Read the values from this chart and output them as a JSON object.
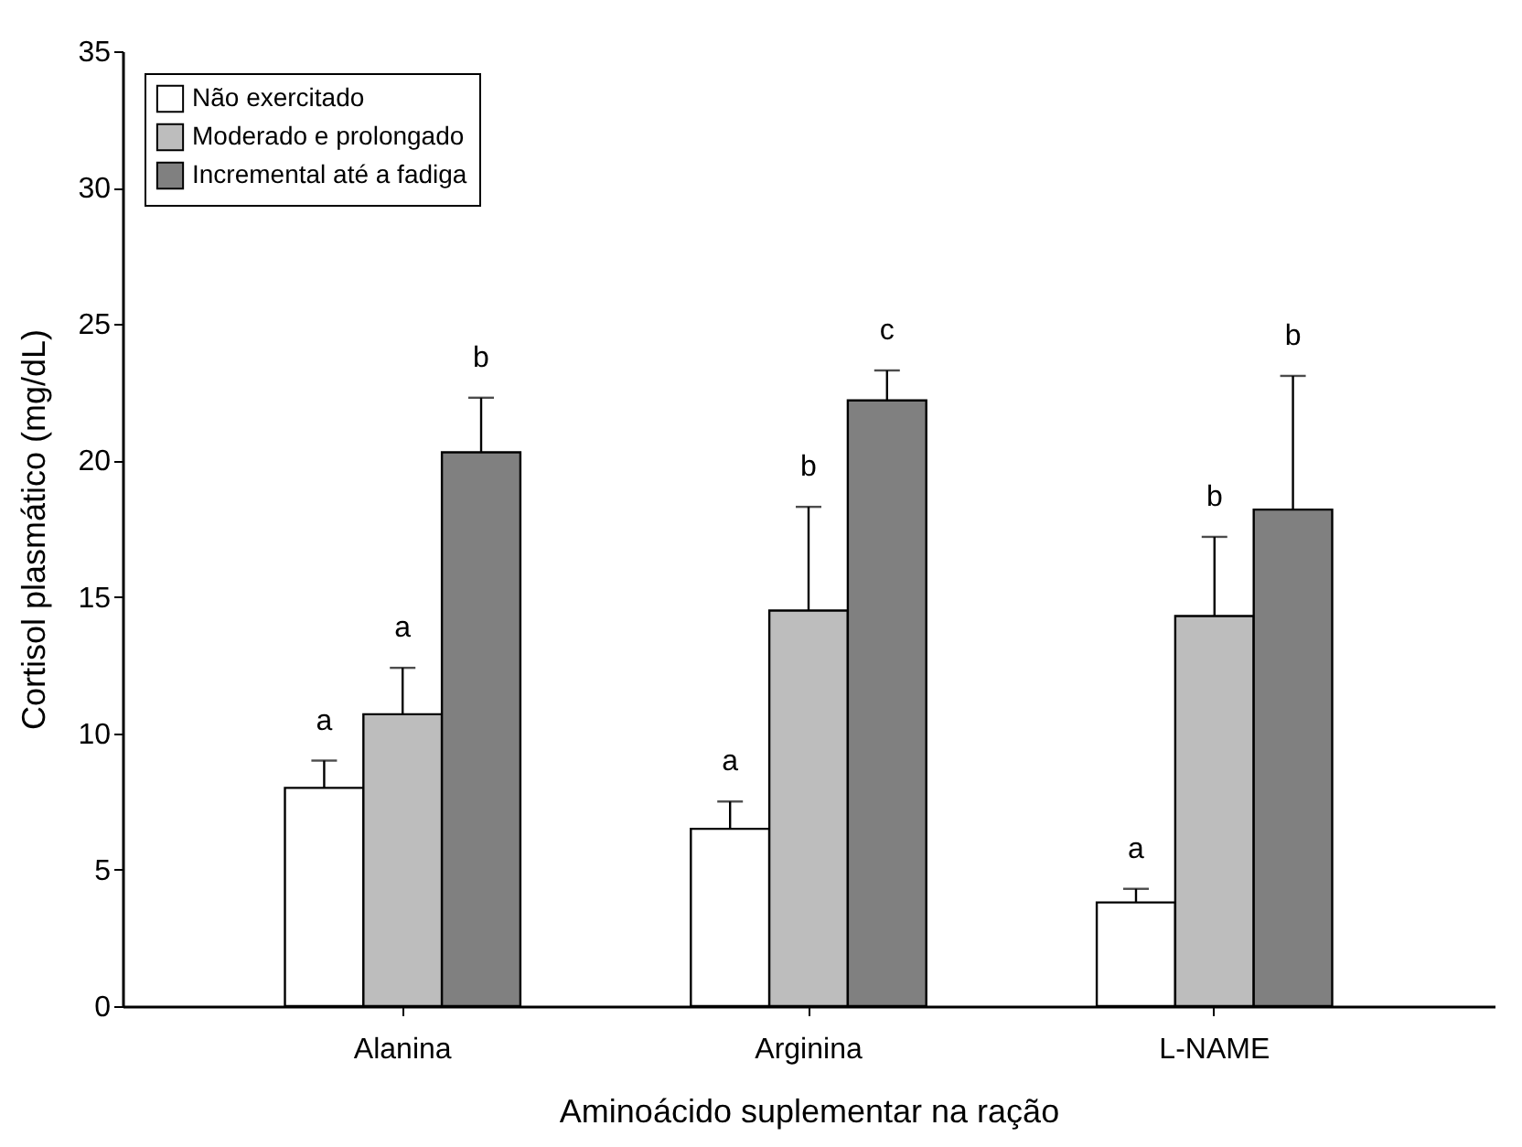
{
  "chart_data": {
    "type": "bar",
    "xlabel": "Aminoácido suplementar na ração",
    "ylabel": "Cortisol plasmático (mg/dL)",
    "categories": [
      "Alanina",
      "Arginina",
      "L-NAME"
    ],
    "series": [
      {
        "name": "Não exercitado",
        "color": "#ffffff",
        "values": [
          8.0,
          6.5,
          3.8
        ],
        "errors": [
          [
            8.0,
            9.0
          ],
          [
            6.5,
            7.5
          ],
          [
            3.8,
            4.3
          ]
        ]
      },
      {
        "name": "Moderado e prolongado",
        "color": "#bdbdbd",
        "values": [
          10.7,
          14.5,
          14.3
        ],
        "errors": [
          [
            10.7,
            12.4
          ],
          [
            14.5,
            18.3
          ],
          [
            14.3,
            17.2
          ]
        ]
      },
      {
        "name": "Incremental até a fadiga",
        "color": "#808080",
        "values": [
          20.3,
          22.2,
          18.2
        ],
        "errors": [
          [
            20.3,
            22.3
          ],
          [
            22.2,
            23.3
          ],
          [
            18.2,
            23.1
          ]
        ]
      }
    ],
    "ylim": [
      0,
      35
    ],
    "yticks": [
      0,
      5,
      10,
      15,
      20,
      25,
      30,
      35
    ],
    "grid": false,
    "legend": "top left",
    "annotations": [
      "a",
      "a",
      "b",
      "a",
      "b",
      "c",
      "a",
      "b",
      "b"
    ]
  }
}
